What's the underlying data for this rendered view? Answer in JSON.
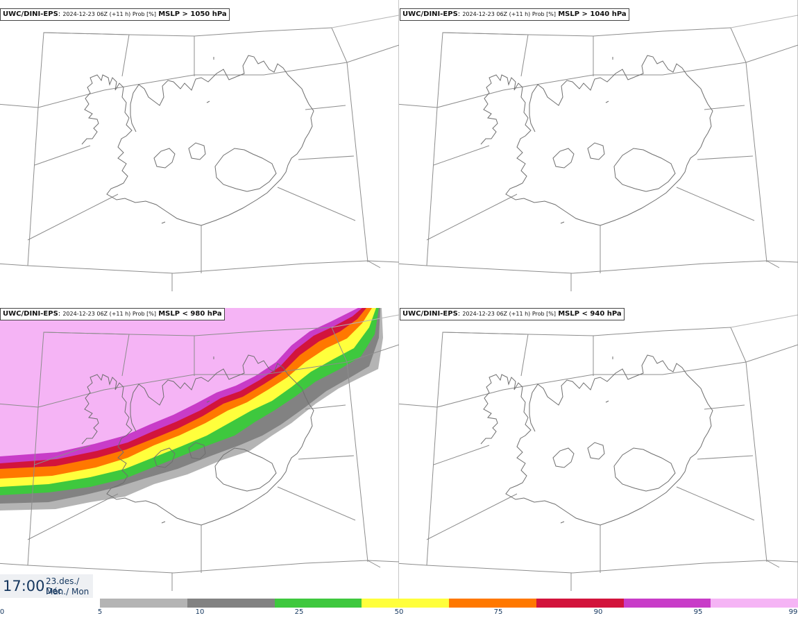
{
  "panels": [
    {
      "model": "UWC/DINI-EPS",
      "meta": "2024-12-23 06Z (+11 h) Prob [%]",
      "threshold": "MSLP > 1050 hPa"
    },
    {
      "model": "UWC/DINI-EPS",
      "meta": "2024-12-23 06Z (+11 h) Prob [%]",
      "threshold": "MSLP > 1040 hPa"
    },
    {
      "model": "UWC/DINI-EPS",
      "meta": "2024-12-23 06Z (+11 h) Prob [%]",
      "threshold": "MSLP < 980 hPa"
    },
    {
      "model": "UWC/DINI-EPS",
      "meta": "2024-12-23 06Z (+11 h) Prob [%]",
      "threshold": "MSLP < 940 hPa"
    }
  ],
  "valid_time": {
    "time": "17:00",
    "date": "23.des./ Dec",
    "weekday": "Mán./ Mon"
  },
  "colorbar": {
    "ticks": [
      "0",
      "5",
      "10",
      "25",
      "50",
      "75",
      "90",
      "95",
      "99"
    ],
    "colors": [
      "#b4b4b4",
      "#828282",
      "#3ec83e",
      "#ffff3c",
      "#ff7800",
      "#d2143c",
      "#c83cc8",
      "#f5b4f5"
    ]
  },
  "map": {
    "coast_color": "#6e6e6e",
    "grid_color": "#8c8c8c",
    "low_pressure_field": "MSLP < 980 hPa"
  }
}
